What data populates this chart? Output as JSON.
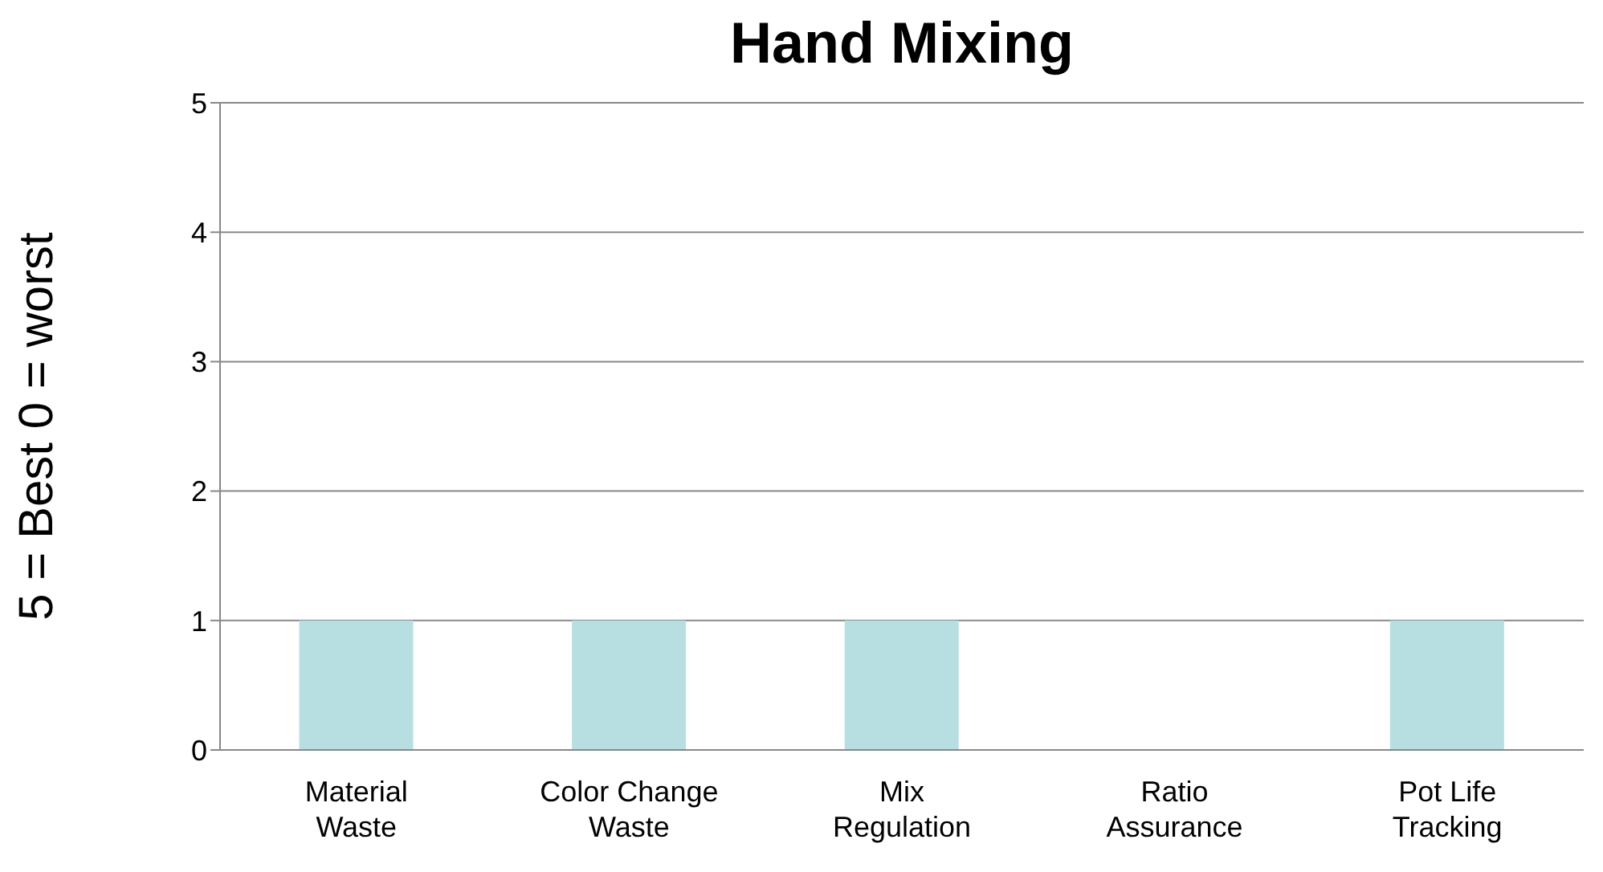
{
  "chart_data": {
    "type": "bar",
    "title": "Hand Mixing",
    "ylabel": "5 = Best 0 = worst",
    "categories": [
      "Material Waste",
      "Color Change Waste",
      "Mix Regulation",
      "Ratio Assurance",
      "Pot Life Tracking"
    ],
    "values": [
      1,
      1,
      1,
      0,
      1
    ],
    "color": "#b7dfe2",
    "ylim": [
      0,
      5
    ],
    "yticks": [
      0,
      1,
      2,
      3,
      4,
      5
    ],
    "grid": "y",
    "legend": false
  }
}
